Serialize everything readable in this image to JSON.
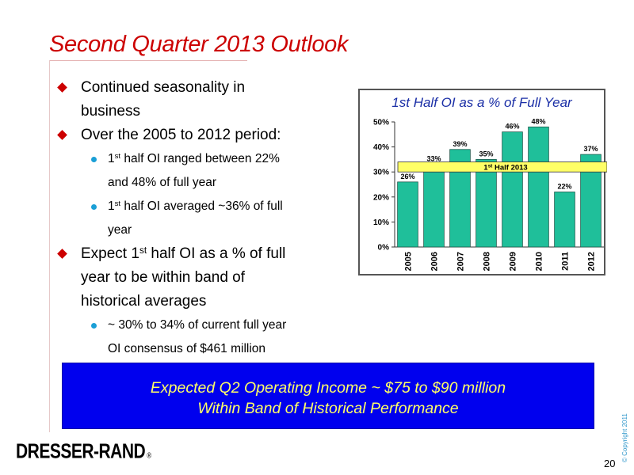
{
  "title": "Second Quarter 2013 Outlook",
  "bullets": {
    "b1_line1": "Continued seasonality in",
    "b1_line2": "business",
    "b2": "Over the 2005 to 2012 period:",
    "s1_sup": "st",
    "s1_pre": "1",
    "s1_line1": " half OI ranged between 22%",
    "s1_line2": "and 48% of full year",
    "s2_pre": "1",
    "s2_sup": "st",
    "s2_line1": " half OI averaged ~36% of full",
    "s2_line2": "year",
    "b3_pre": "Expect 1",
    "b3_sup": "st",
    "b3_line1": " half OI as a % of full",
    "b3_line2": "year to be within band of",
    "b3_line3": "historical averages",
    "s3_line1": "~ 30% to 34% of current full year",
    "s3_line2": "OI consensus of $461 million"
  },
  "chart_data": {
    "type": "bar",
    "title": "1st Half OI as a % of Full Year",
    "categories": [
      "2005",
      "2006",
      "2007",
      "2008",
      "2009",
      "2010",
      "2011",
      "2012"
    ],
    "values": [
      26,
      33,
      39,
      35,
      46,
      48,
      22,
      37
    ],
    "data_labels": [
      "26%",
      "33%",
      "39%",
      "35%",
      "46%",
      "48%",
      "22%",
      "37%"
    ],
    "y_ticks": [
      "0%",
      "10%",
      "20%",
      "30%",
      "40%",
      "50%"
    ],
    "ylim": [
      0,
      50
    ],
    "band": {
      "label_pre": "1",
      "label_sup": "st",
      "label_post": " Half 2013",
      "from": 30,
      "to": 34
    },
    "colors": {
      "bar": "#1fbf9a",
      "band": "#ffff66",
      "title": "#1a2ea6"
    }
  },
  "banner": {
    "line1": "Expected Q2 Operating Income ~ $75 to $90 million",
    "line2": "Within Band of Historical Performance"
  },
  "footer": {
    "logo": "DRESSER-RAND",
    "logo_reg": "®",
    "copyright": "© Copyright 2011",
    "page": "20"
  }
}
